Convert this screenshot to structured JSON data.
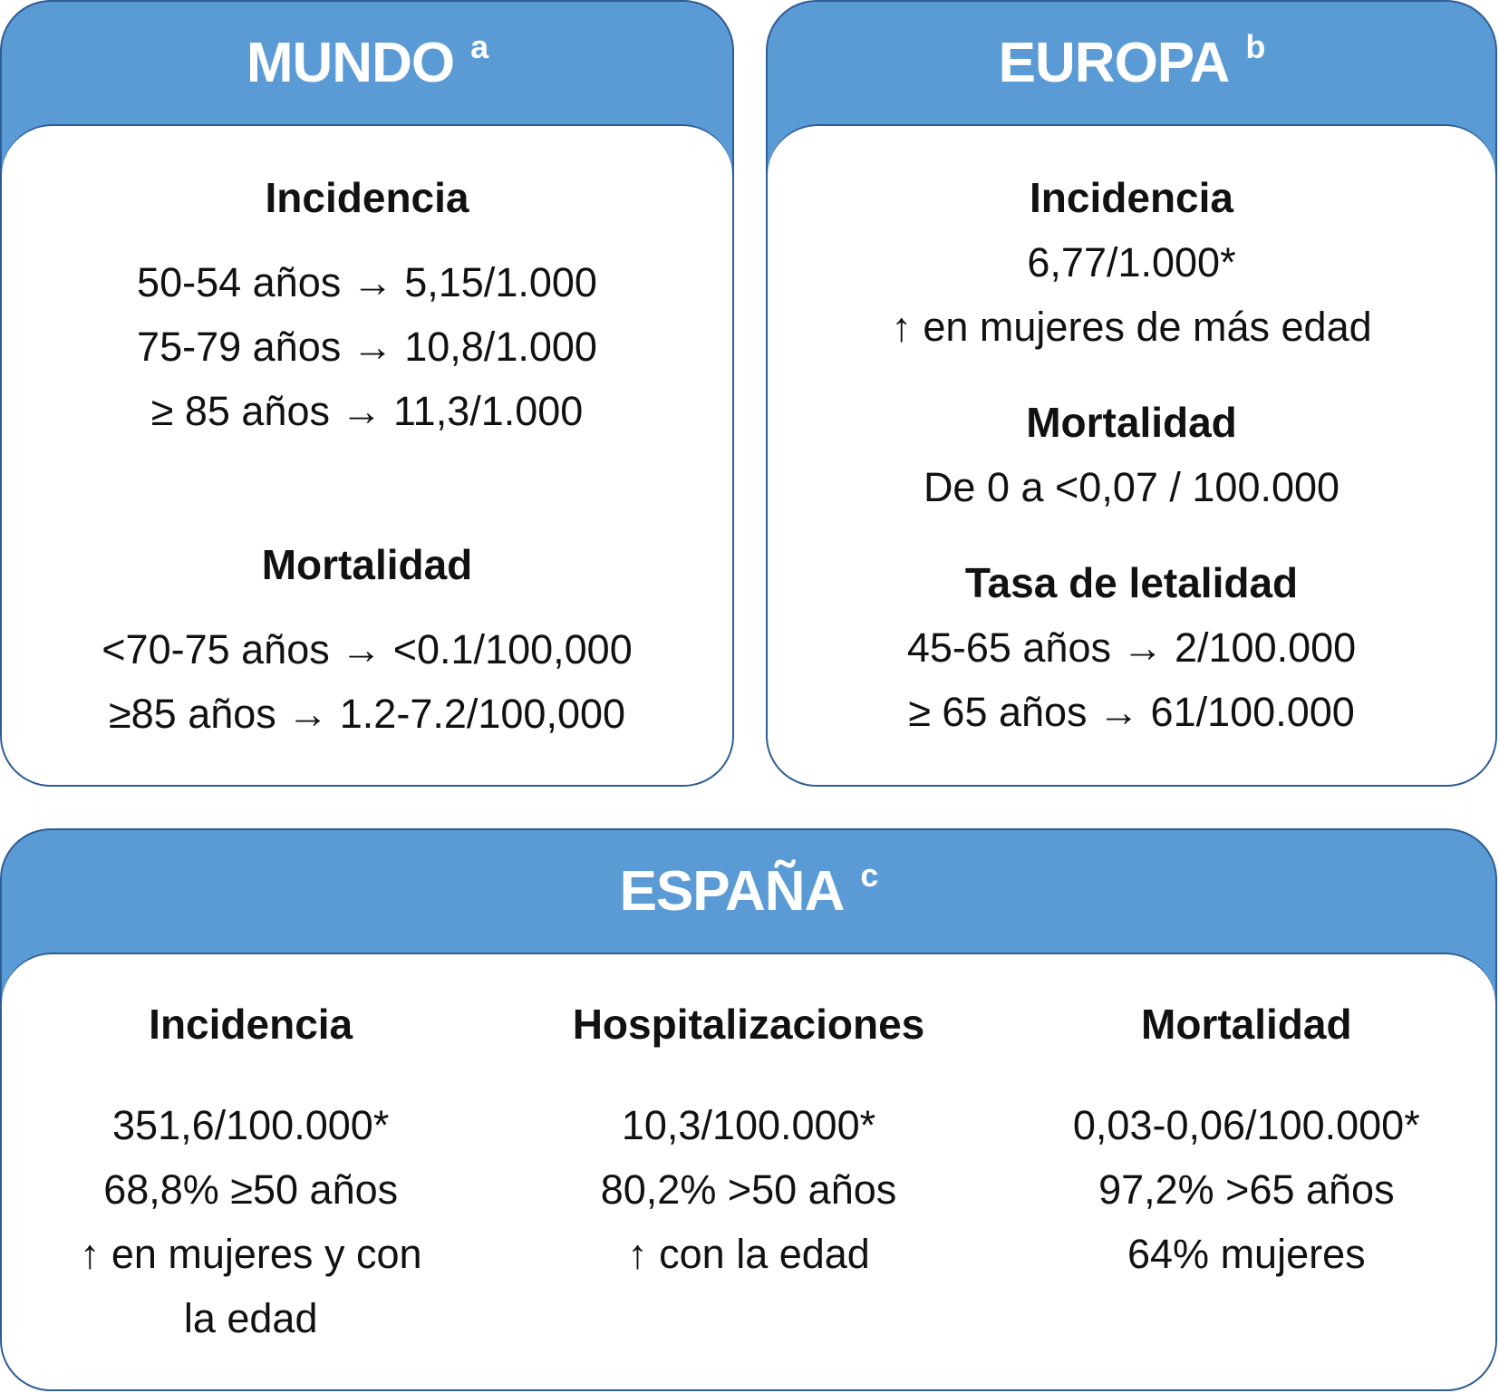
{
  "panels": [
    {
      "title": "MUNDO",
      "superscript": "a",
      "sections": [
        {
          "heading": "Incidencia",
          "lines": [
            "50-54 años → 5,15/1.000",
            "75-79 años → 10,8/1.000",
            "≥ 85 años → 11,3/1.000"
          ]
        },
        {
          "heading": "Mortalidad",
          "lines": [
            "<70-75 años → <0.1/100,000",
            "≥85 años → 1.2-7.2/100,000"
          ]
        }
      ]
    },
    {
      "title": "EUROPA",
      "superscript": "b",
      "sections": [
        {
          "heading": "Incidencia",
          "lines": [
            "6,77/1.000*",
            "↑ en mujeres de más edad"
          ]
        },
        {
          "heading": "Mortalidad",
          "lines": [
            "De 0 a <0,07 / 100.000"
          ]
        },
        {
          "heading": "Tasa de letalidad",
          "lines": [
            "45-65 años → 2/100.000",
            "≥ 65 años → 61/100.000"
          ]
        }
      ]
    },
    {
      "title": "ESPAÑA",
      "superscript": "c",
      "sections": [
        {
          "heading": "Incidencia",
          "lines": [
            "351,6/100.000*",
            "68,8% ≥50 años",
            "↑ en mujeres y con",
            "la edad"
          ]
        },
        {
          "heading": "Hospitalizaciones",
          "lines": [
            "10,3/100.000*",
            "80,2% >50 años",
            "↑ con la edad"
          ]
        },
        {
          "heading": "Mortalidad",
          "lines": [
            "0,03-0,06/100.000*",
            "97,2% >65 años",
            "64% mujeres"
          ]
        }
      ]
    }
  ]
}
